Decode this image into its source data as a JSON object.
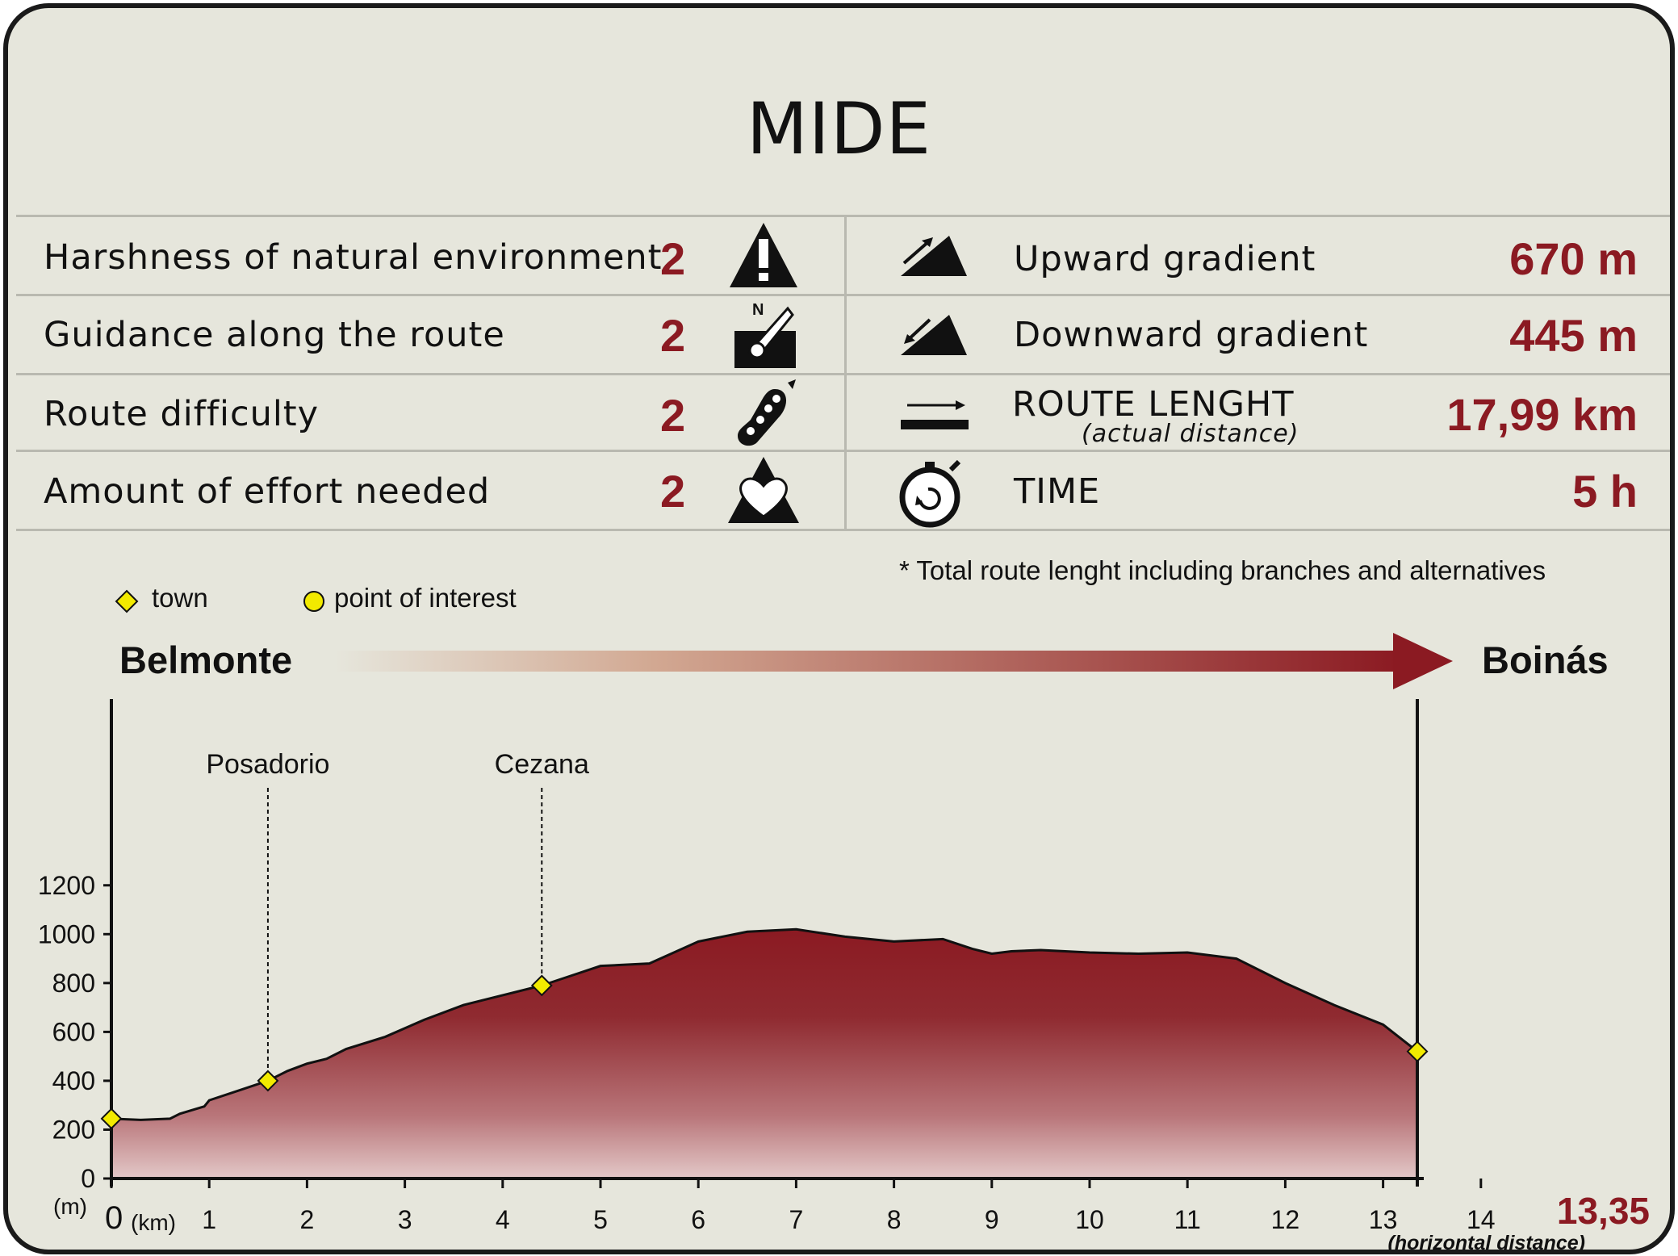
{
  "title": "MIDE",
  "ratings": [
    {
      "label": "Harshness of natural environment",
      "score": "2",
      "icon": "warning-icon"
    },
    {
      "label": "Guidance along the route",
      "score": "2",
      "icon": "compass-sign-icon"
    },
    {
      "label": "Route difficulty",
      "score": "2",
      "icon": "footprint-icon"
    },
    {
      "label": "Amount of effort needed",
      "score": "2",
      "icon": "heart-mountain-icon"
    }
  ],
  "stats": {
    "upward": {
      "label": "Upward gradient",
      "value": "670 m",
      "icon": "upward-slope-icon"
    },
    "downward": {
      "label": "Downward gradient",
      "value": "445 m",
      "icon": "downward-slope-icon"
    },
    "length": {
      "label": "ROUTE LENGHT",
      "sublabel": "(actual distance)",
      "value": "17,99 km",
      "icon": "length-arrow-icon"
    },
    "time": {
      "label": "TIME",
      "value": "5 h",
      "icon": "stopwatch-icon"
    }
  },
  "note": "* Total route lenght including branches and alternatives",
  "legend": {
    "town": "town",
    "poi": "point of interest"
  },
  "route": {
    "start": "Belmonte",
    "end": "Boinás"
  },
  "colors": {
    "accent": "#8b1a22",
    "background": "#e6e6dc",
    "marker": "#f2ea00"
  },
  "chart_data": {
    "type": "area",
    "ylabel": "(m)",
    "xlabel": "(km)",
    "xlabel_end": "(horizontal distance)",
    "x_end_label": "13,35",
    "xlim": [
      0,
      13.35
    ],
    "ylim": [
      0,
      1200
    ],
    "yticks": [
      0,
      200,
      400,
      600,
      800,
      1000,
      1200
    ],
    "xticks": [
      0,
      1,
      2,
      3,
      4,
      5,
      6,
      7,
      8,
      9,
      10,
      11,
      12,
      13,
      14
    ],
    "x": [
      0,
      0.3,
      0.6,
      0.7,
      0.95,
      1.0,
      1.3,
      1.6,
      1.8,
      2.0,
      2.2,
      2.4,
      2.8,
      3.2,
      3.6,
      4.0,
      4.4,
      4.7,
      5.0,
      5.5,
      6.0,
      6.5,
      7.0,
      7.5,
      8.0,
      8.5,
      8.8,
      9.0,
      9.2,
      9.5,
      10.0,
      10.5,
      11.0,
      11.5,
      12.0,
      12.5,
      13.0,
      13.35
    ],
    "y": [
      245,
      240,
      245,
      265,
      295,
      320,
      360,
      400,
      440,
      470,
      490,
      530,
      580,
      650,
      710,
      750,
      790,
      830,
      870,
      880,
      970,
      1010,
      1020,
      990,
      970,
      980,
      940,
      920,
      930,
      935,
      925,
      920,
      925,
      900,
      800,
      710,
      630,
      520
    ],
    "markers": [
      {
        "x": 0,
        "y": 245,
        "kind": "town"
      },
      {
        "x": 1.6,
        "y": 400,
        "kind": "town",
        "label": "Posadorio"
      },
      {
        "x": 4.4,
        "y": 790,
        "kind": "town",
        "label": "Cezana"
      },
      {
        "x": 13.35,
        "y": 520,
        "kind": "town"
      }
    ]
  }
}
